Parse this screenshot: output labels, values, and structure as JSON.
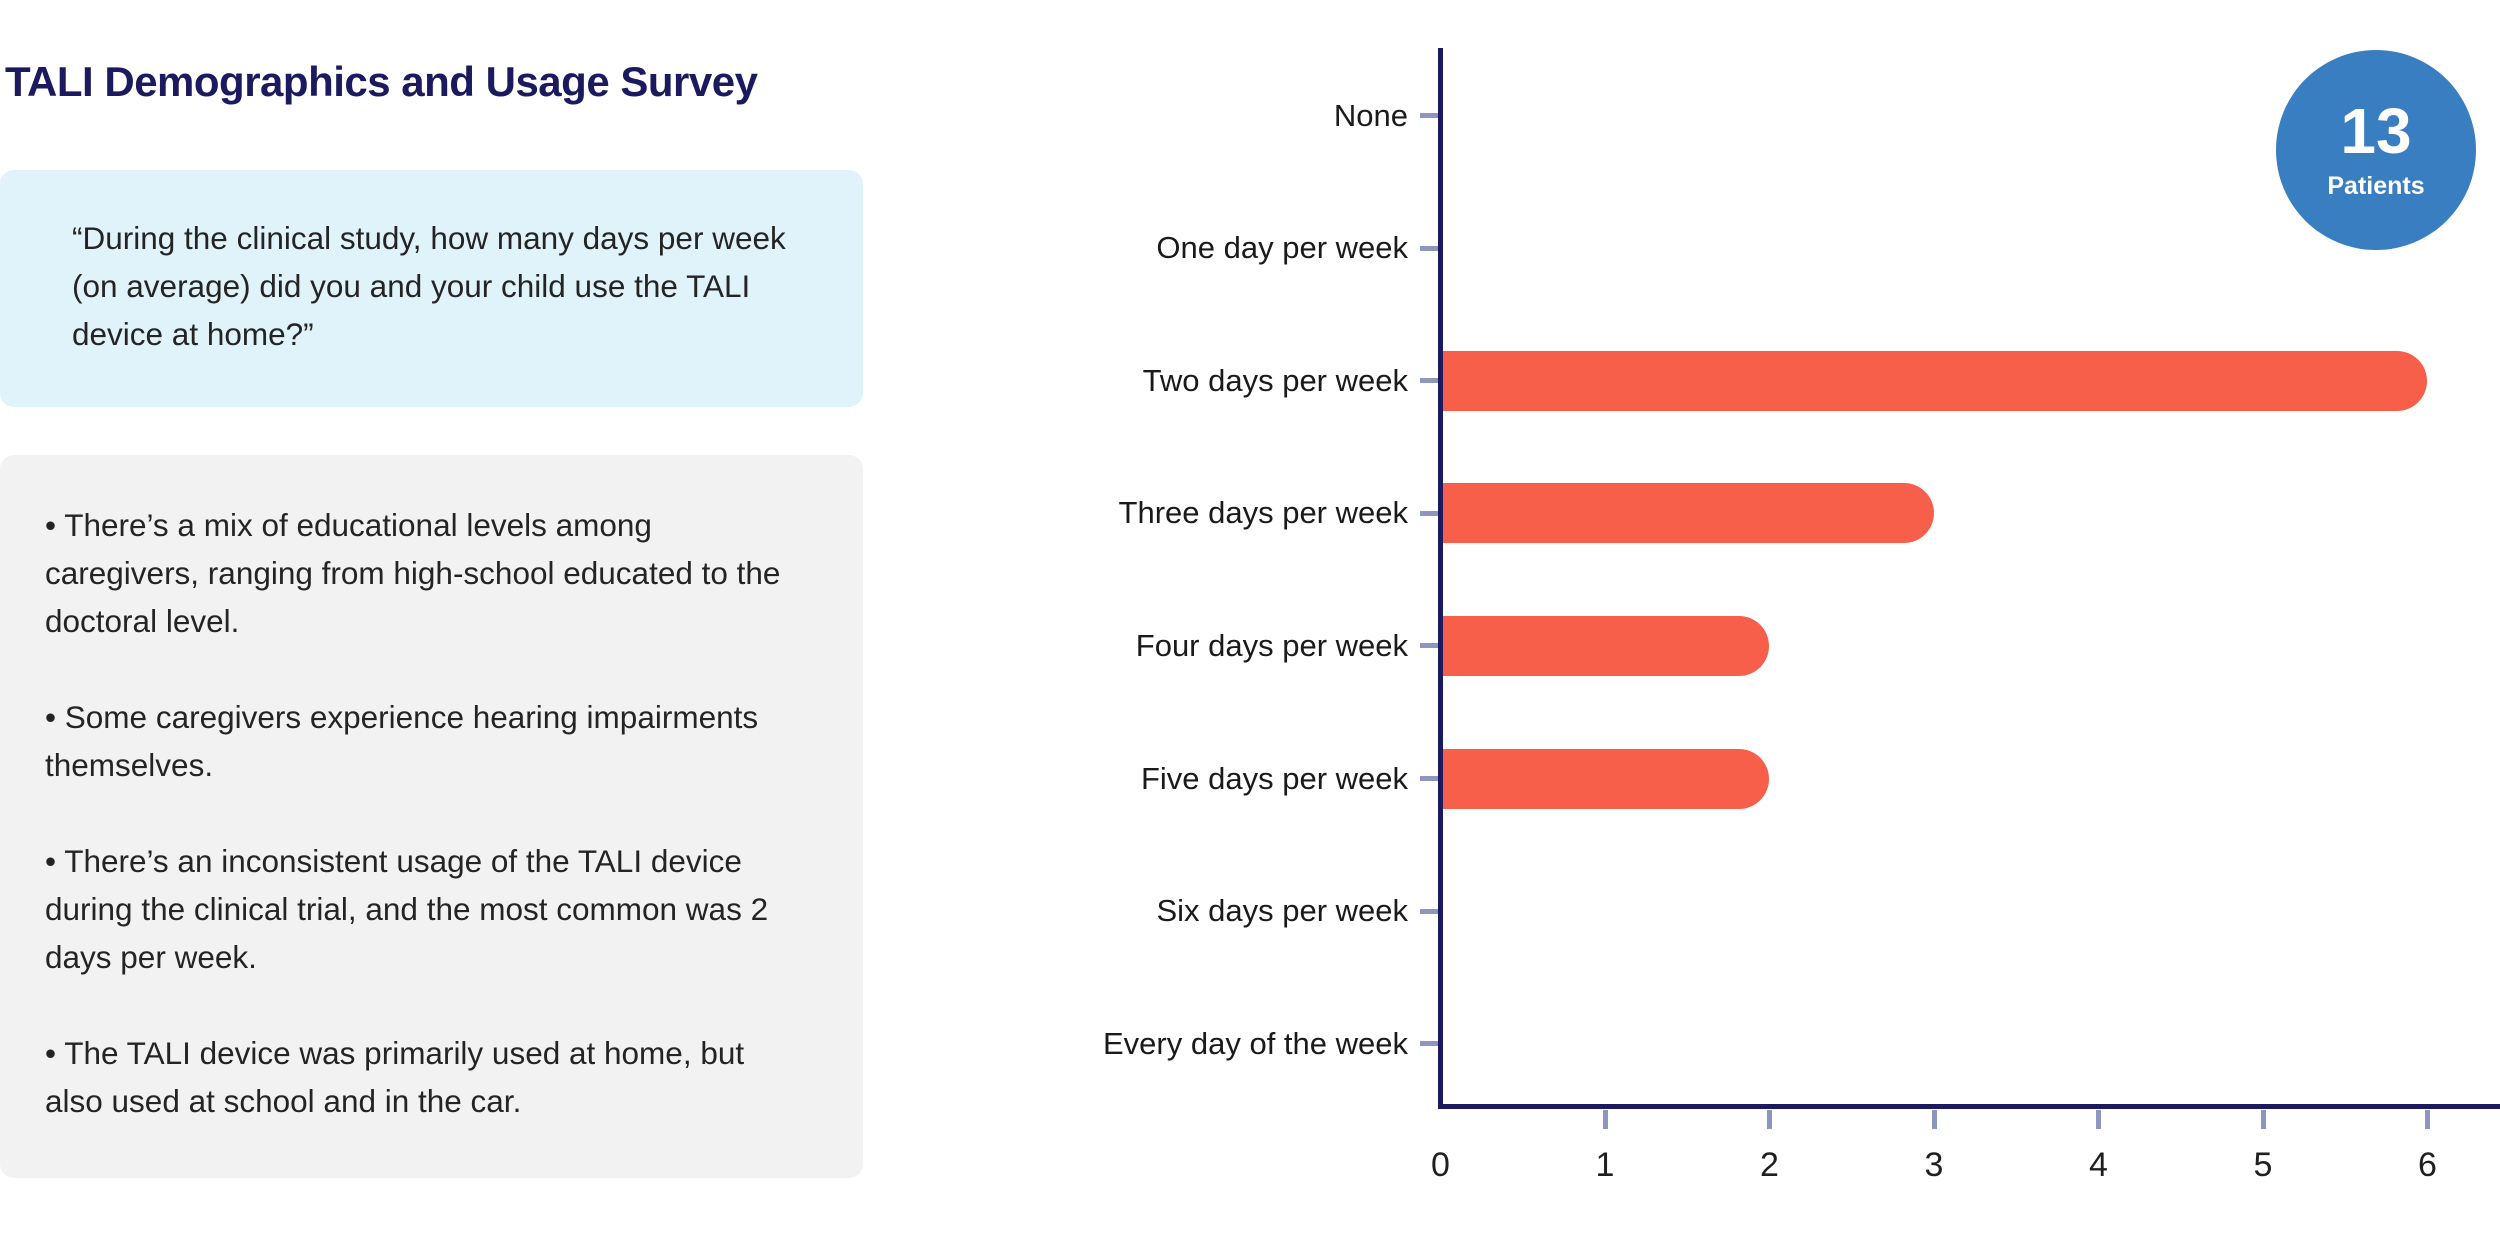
{
  "header": {
    "title": "TALI Demographics and Usage Survey"
  },
  "question_card": {
    "text": "“During the clinical study, how many days per week (on average) did you and your child use the TALI device at home?”"
  },
  "notes_card": {
    "bullets": [
      "• There’s a mix of educational levels among caregivers, ranging from high-school educated to the doctoral level.",
      "• Some caregivers experience hearing impairments themselves.",
      "• There’s an inconsistent usage of the TALI device during the clinical trial, and the most common was 2 days per week.",
      "• The TALI device was primarily used at home, but also used at school and in the car."
    ]
  },
  "badge": {
    "value": "13",
    "label": "Patients"
  },
  "chart_data": {
    "type": "bar",
    "orientation": "horizontal",
    "title": "",
    "xlabel": "",
    "ylabel": "",
    "categories": [
      "None",
      "One day per week",
      "Two days per week",
      "Three days per week",
      "Four days per week",
      "Five days per week",
      "Six days per week",
      "Every day of the week"
    ],
    "values": [
      0,
      0,
      6,
      3,
      2,
      2,
      0,
      0
    ],
    "x_ticks": [
      0,
      1,
      2,
      3,
      4,
      5,
      6
    ],
    "xlim": [
      0,
      6.4
    ],
    "grid": false,
    "legend": false,
    "units": "patients"
  },
  "colors": {
    "navy": "#1C1A5E",
    "bar": "#F75F4A",
    "tick": "#8E96BF",
    "blue": "#3A7EC2",
    "quote_bg": "#E0F2FA",
    "gray_bg": "#F2F2F2"
  }
}
